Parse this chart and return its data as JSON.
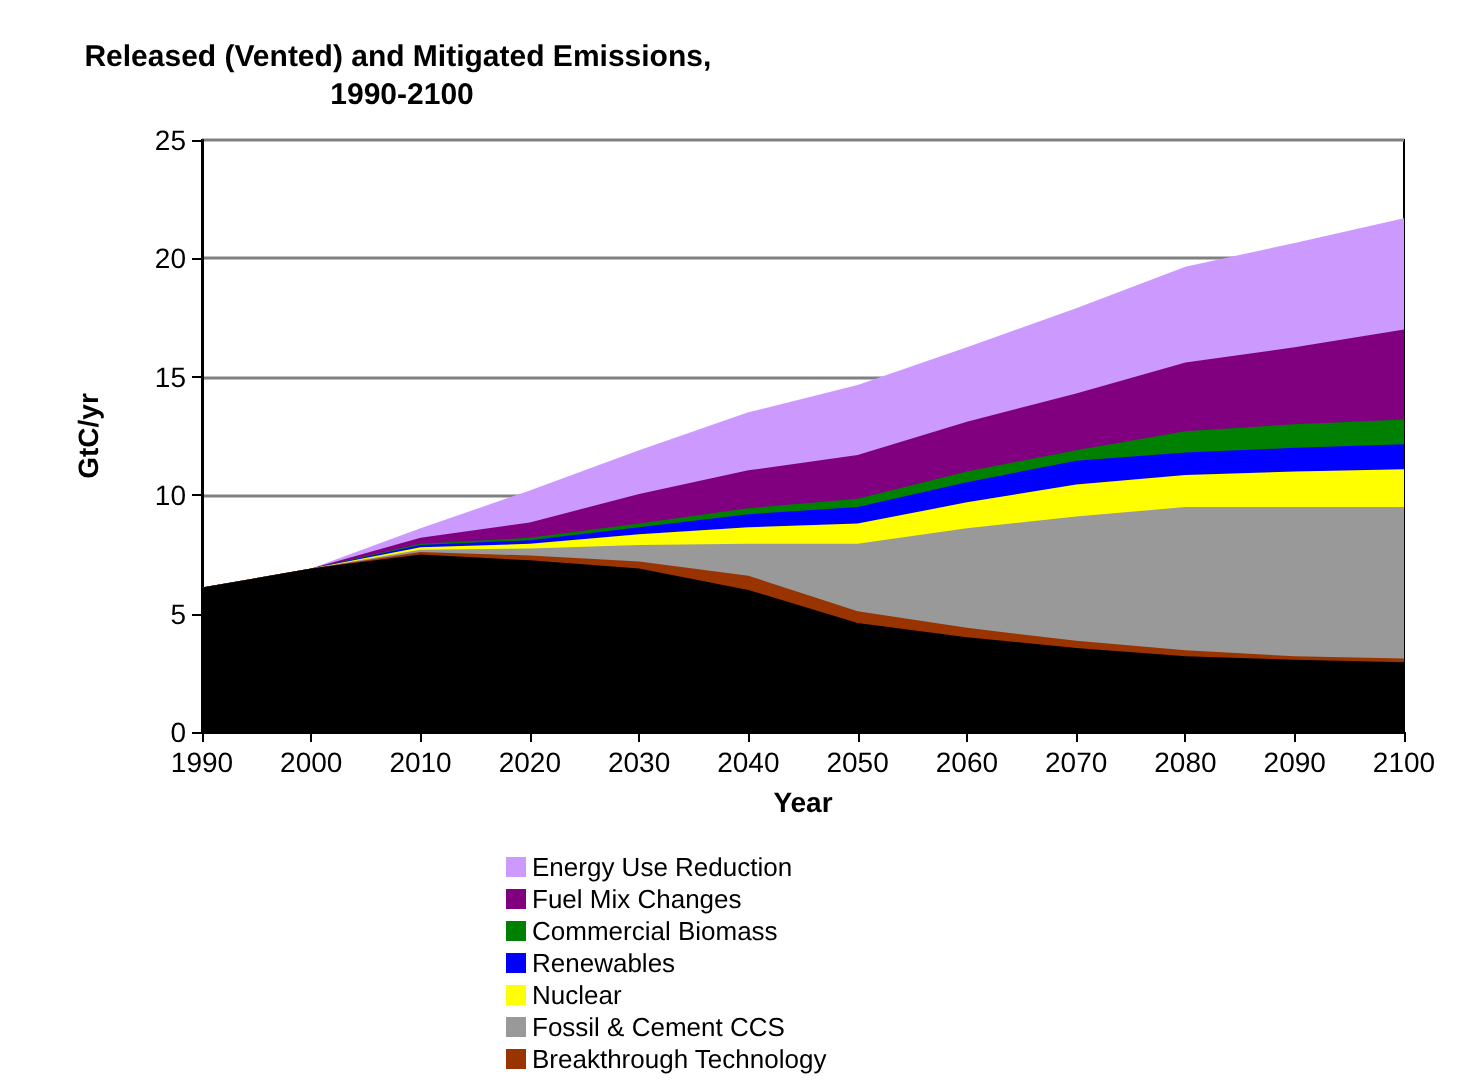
{
  "chart_data": {
    "type": "area",
    "title": "Released (Vented) and Mitigated Emissions, 1990-2100",
    "xlabel": "Year",
    "ylabel": "GtC/yr",
    "stacked": true,
    "x": [
      1990,
      2000,
      2010,
      2020,
      2030,
      2040,
      2050,
      2060,
      2070,
      2080,
      2090,
      2100
    ],
    "xlim": [
      1990,
      2100
    ],
    "xticks": [
      1990,
      2000,
      2010,
      2020,
      2030,
      2040,
      2050,
      2060,
      2070,
      2080,
      2090,
      2100
    ],
    "ylim": [
      0,
      25
    ],
    "yticks": [
      0,
      5,
      10,
      15,
      20,
      25
    ],
    "grid": "y",
    "legend": "bottom",
    "marker": "none",
    "series": [
      {
        "color": "#000000",
        "values": [
          6.1,
          6.9,
          7.5,
          7.25,
          6.9,
          6.0,
          4.6,
          4.0,
          3.55,
          3.2,
          3.05,
          2.95
        ]
      },
      {
        "name": "Breakthrough Technology",
        "color": "#993300",
        "values": [
          0,
          0,
          0.1,
          0.2,
          0.3,
          0.6,
          0.5,
          0.4,
          0.3,
          0.25,
          0.15,
          0.15
        ]
      },
      {
        "name": "Fossil & Cement CCS",
        "color": "#999999",
        "values": [
          0,
          0,
          0.1,
          0.3,
          0.7,
          1.35,
          2.85,
          4.2,
          5.25,
          6.05,
          6.3,
          6.4
        ]
      },
      {
        "name": "Nuclear",
        "color": "#ffff00",
        "values": [
          0,
          0,
          0.1,
          0.2,
          0.45,
          0.7,
          0.85,
          1.1,
          1.35,
          1.35,
          1.5,
          1.6
        ]
      },
      {
        "name": "Renewables",
        "color": "#0000ff",
        "values": [
          0,
          0,
          0.1,
          0.15,
          0.3,
          0.55,
          0.7,
          0.85,
          1.0,
          0.95,
          1.0,
          1.05
        ]
      },
      {
        "name": "Commercial Biomass",
        "color": "#008000",
        "values": [
          0,
          0,
          0.05,
          0.1,
          0.15,
          0.25,
          0.35,
          0.45,
          0.45,
          0.9,
          1.0,
          1.05
        ]
      },
      {
        "name": "Fuel Mix Changes",
        "color": "#800080",
        "values": [
          0,
          0,
          0.25,
          0.65,
          1.25,
          1.6,
          1.85,
          2.1,
          2.4,
          2.9,
          3.25,
          3.8
        ]
      },
      {
        "name": "Energy Use Reduction",
        "color": "#cc99ff",
        "values": [
          0,
          0,
          0.4,
          1.35,
          1.85,
          2.45,
          2.95,
          3.15,
          3.6,
          4.05,
          4.4,
          4.7
        ]
      }
    ]
  }
}
